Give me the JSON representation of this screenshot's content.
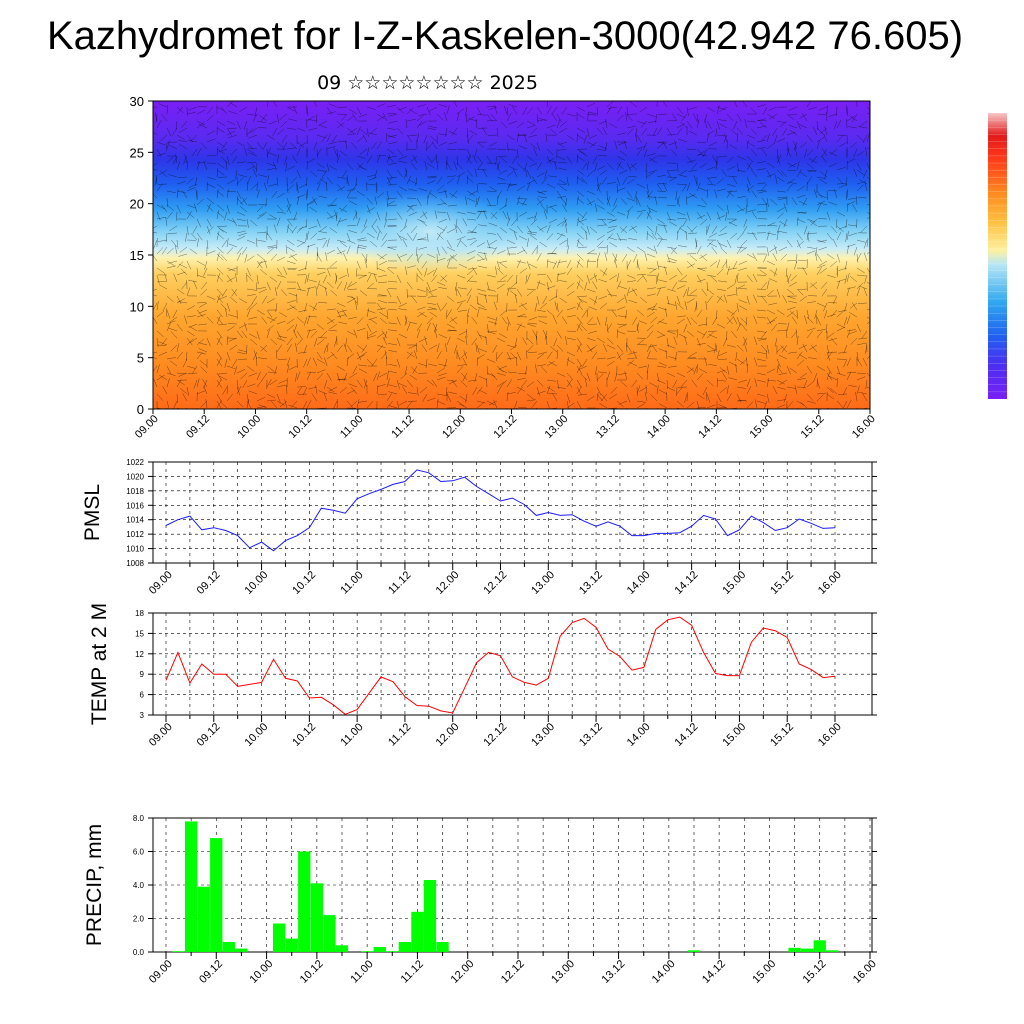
{
  "title": "Kazhydromet for I-Z-Kaskelen-3000(42.942 76.605)",
  "subtitle": "09 ☆☆☆☆☆☆☆☆ 2025",
  "colors": {
    "pmsl": "#1a1aff",
    "temp": "#ff0000",
    "precip": "#00ff00"
  },
  "chart_data": [
    {
      "type": "heatmap",
      "title": "",
      "xlabel": "",
      "ylabel": "",
      "ylim": [
        0,
        30
      ],
      "yticks": [
        0,
        5,
        10,
        15,
        20,
        25,
        30
      ],
      "xticks": [
        "09.00",
        "09.12",
        "10.00",
        "10.12",
        "11.00",
        "11.12",
        "12.00",
        "12.12",
        "13.00",
        "13.12",
        "14.00",
        "14.12",
        "15.00",
        "15.12",
        "16.00"
      ],
      "colorbar": [
        "#7a1ff5",
        "#5a2af0",
        "#2e35e8",
        "#1f5ff0",
        "#2f9cf2",
        "#7fd0f5",
        "#c8ecf7",
        "#fff2b0",
        "#ffd060",
        "#ffa630",
        "#ff7a20",
        "#ff4a1a",
        "#e51a1a",
        "#f5a0a0"
      ]
    },
    {
      "type": "line",
      "ylabel": "PMSL",
      "ylim": [
        1008,
        1022
      ],
      "yticks": [
        1008,
        1010,
        1012,
        1014,
        1016,
        1018,
        1020,
        1022
      ],
      "xticks": [
        "09.00",
        "09.12",
        "10.00",
        "10.12",
        "11.00",
        "11.12",
        "12.00",
        "12.12",
        "13.00",
        "13.12",
        "14.00",
        "14.12",
        "15.00",
        "15.12",
        "16.00"
      ],
      "series": [
        {
          "values": [
            1013.2,
            1014.0,
            1014.5,
            1012.6,
            1012.9,
            1012.5,
            1011.8,
            1010.1,
            1010.9,
            1009.7,
            1011.1,
            1011.8,
            1012.9,
            1015.6,
            1015.3,
            1014.9,
            1016.9,
            1017.6,
            1018.2,
            1018.9,
            1019.3,
            1020.9,
            1020.5,
            1019.3,
            1019.4,
            1019.9,
            1018.6,
            1017.6,
            1016.6,
            1017.0,
            1016.1,
            1014.6,
            1015.0,
            1014.6,
            1014.7,
            1013.8,
            1013.1,
            1013.7,
            1013.1,
            1011.8,
            1011.8,
            1012.1,
            1012.1,
            1012.2,
            1013.1,
            1014.6,
            1014.1,
            1011.8,
            1012.6,
            1014.5,
            1013.6,
            1012.5,
            1012.9,
            1014.1,
            1013.5,
            1012.8,
            1012.9
          ]
        }
      ]
    },
    {
      "type": "line",
      "ylabel": "TEMP at 2 M",
      "ylim": [
        3,
        18
      ],
      "yticks": [
        3,
        6,
        9,
        12,
        15,
        18
      ],
      "xticks": [
        "09.00",
        "09.12",
        "10.00",
        "10.12",
        "11.00",
        "11.12",
        "12.00",
        "12.12",
        "13.00",
        "13.12",
        "14.00",
        "14.12",
        "15.00",
        "15.12",
        "16.00"
      ],
      "series": [
        {
          "values": [
            8.1,
            12.2,
            7.7,
            10.5,
            9.0,
            9.0,
            7.2,
            7.5,
            7.8,
            11.2,
            8.4,
            8.0,
            5.5,
            5.6,
            4.5,
            3.1,
            3.8,
            6.2,
            8.6,
            7.9,
            5.7,
            4.4,
            4.3,
            3.6,
            3.3,
            7.0,
            10.7,
            12.2,
            11.7,
            8.6,
            7.8,
            7.4,
            8.4,
            14.6,
            16.6,
            17.2,
            15.9,
            12.7,
            11.6,
            9.6,
            10.0,
            15.6,
            17.0,
            17.4,
            16.2,
            12.2,
            9.1,
            8.8,
            8.8,
            13.7,
            15.8,
            15.4,
            14.4,
            10.5,
            9.7,
            8.5,
            8.7
          ]
        }
      ]
    },
    {
      "type": "bar",
      "ylabel": "PRECIP, mm",
      "ylim": [
        0,
        8
      ],
      "yticks": [
        "0.0",
        "2.0",
        "4.0",
        "6.0",
        "8.0"
      ],
      "xticks": [
        "09.00",
        "09.12",
        "10.00",
        "10.12",
        "11.00",
        "11.12",
        "12.00",
        "12.12",
        "13.00",
        "13.12",
        "14.00",
        "14.12",
        "15.00",
        "15.12",
        "16.00"
      ],
      "values": [
        0,
        0.05,
        7.8,
        3.9,
        6.8,
        0.6,
        0.2,
        0,
        0,
        1.7,
        0.8,
        6.0,
        4.1,
        2.2,
        0.4,
        0,
        0.05,
        0.3,
        0.05,
        0.6,
        2.4,
        4.3,
        0.6,
        0,
        0,
        0,
        0,
        0,
        0,
        0,
        0,
        0,
        0,
        0,
        0,
        0,
        0,
        0,
        0,
        0,
        0,
        0,
        0.1,
        0,
        0,
        0,
        0,
        0,
        0,
        0,
        0.25,
        0.2,
        0.7,
        0.1,
        0,
        0,
        0
      ]
    }
  ]
}
